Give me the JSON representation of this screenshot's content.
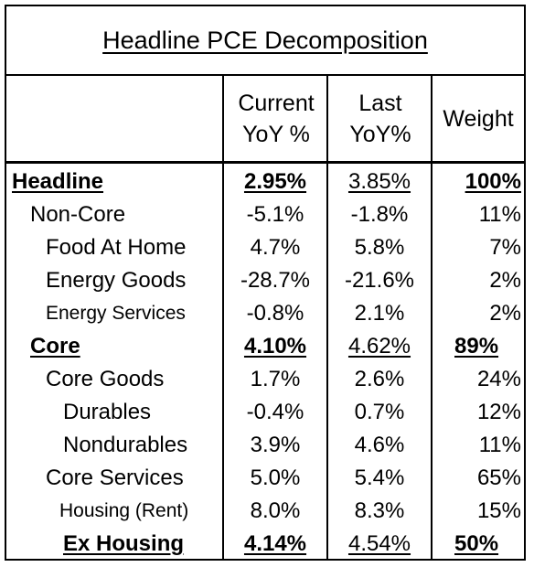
{
  "title": "Headline PCE Decomposition",
  "headers": {
    "current_line1": "Current",
    "current_line2": "YoY %",
    "last_line1": "Last",
    "last_line2": "YoY%",
    "weight": "Weight"
  },
  "rows": [
    {
      "label": "Headline",
      "current": "2.95%",
      "last": "3.85%",
      "weight": "100%"
    },
    {
      "label": "Non-Core",
      "current": "-5.1%",
      "last": "-1.8%",
      "weight": "11%"
    },
    {
      "label": "Food At Home",
      "current": "4.7%",
      "last": "5.8%",
      "weight": "7%"
    },
    {
      "label": "Energy Goods",
      "current": "-28.7%",
      "last": "-21.6%",
      "weight": "2%"
    },
    {
      "label": "Energy Services",
      "current": "-0.8%",
      "last": "2.1%",
      "weight": "2%"
    },
    {
      "label": "Core",
      "current": "4.10%",
      "last": "4.62%",
      "weight": "89%"
    },
    {
      "label": "Core Goods",
      "current": "1.7%",
      "last": "2.6%",
      "weight": "24%"
    },
    {
      "label": "Durables",
      "current": "-0.4%",
      "last": "0.7%",
      "weight": "12%"
    },
    {
      "label": "Nondurables",
      "current": "3.9%",
      "last": "4.6%",
      "weight": "11%"
    },
    {
      "label": "Core Services",
      "current": "5.0%",
      "last": "5.4%",
      "weight": "65%"
    },
    {
      "label": "Housing (Rent)",
      "current": "8.0%",
      "last": "8.3%",
      "weight": "15%"
    },
    {
      "label": "Ex Housing",
      "current": "4.14%",
      "last": "4.54%",
      "weight": "50%"
    }
  ]
}
